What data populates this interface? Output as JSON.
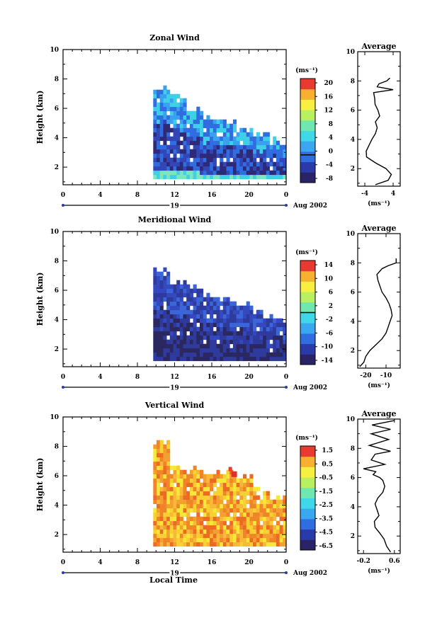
{
  "figure": {
    "date_label": "Aug 2002",
    "day_label": "19",
    "xlabel_bottom": "Local Time",
    "units_label": "(ms⁻¹)"
  },
  "chart_data": [
    {
      "type": "heatmap",
      "title": "Zonal Wind",
      "ylabel": "Height (km)",
      "xlabel": "Local Time",
      "x_ticks": [
        "0",
        "4",
        "8",
        "12",
        "16",
        "20",
        "0"
      ],
      "y_ticks": [
        "2",
        "4",
        "6",
        "8",
        "10"
      ],
      "xlim": [
        0,
        24
      ],
      "ylim": [
        0.8,
        10
      ],
      "data_extent": {
        "x_start": 9.7,
        "x_end": 24,
        "top_heights": [
          7.8,
          7.2,
          6.4,
          5.8,
          5.4,
          5.0,
          4.6,
          4.2
        ]
      },
      "colorbar": {
        "unit": "(ms⁻¹)",
        "range": [
          -8,
          22
        ],
        "tick_labels": [
          "-8",
          "-4",
          "0",
          "4",
          "8",
          "12",
          "16",
          "20"
        ],
        "contour_level": 0
      },
      "shading": "mostly negative (dark to mid blue), cyan/green band near 1 km and above 5 km",
      "average_profile": {
        "title": "Average",
        "xlabel": "(ms⁻¹)",
        "x_ticks": [
          "-4",
          "4"
        ],
        "xlim": [
          -6,
          6
        ],
        "y_ticks": [
          "2",
          "4",
          "6",
          "8",
          "10"
        ],
        "ylim": [
          0.8,
          10
        ],
        "points": [
          [
            -1,
            0.9
          ],
          [
            2.6,
            1.2
          ],
          [
            3.5,
            1.6
          ],
          [
            2,
            2
          ],
          [
            -1,
            2.4
          ],
          [
            -3.5,
            2.8
          ],
          [
            -3.6,
            3.2
          ],
          [
            -2.8,
            3.6
          ],
          [
            -2,
            4
          ],
          [
            -1,
            4.4
          ],
          [
            -0.5,
            4.8
          ],
          [
            -1,
            5.2
          ],
          [
            0.2,
            5.6
          ],
          [
            -0.3,
            6
          ],
          [
            -1.1,
            6.4
          ],
          [
            -1.2,
            6.8
          ],
          [
            -1.5,
            7.2
          ],
          [
            4,
            7.4
          ],
          [
            -0.5,
            7.6
          ],
          [
            0,
            7.8
          ],
          [
            2.2,
            8.0
          ],
          [
            3.1,
            8.2
          ]
        ]
      }
    },
    {
      "type": "heatmap",
      "title": "Meridional Wind",
      "ylabel": "Height (km)",
      "xlabel": "Local Time",
      "x_ticks": [
        "0",
        "4",
        "8",
        "12",
        "16",
        "20",
        "0"
      ],
      "y_ticks": [
        "2",
        "4",
        "6",
        "8",
        "10"
      ],
      "xlim": [
        0,
        24
      ],
      "ylim": [
        0.8,
        10
      ],
      "data_extent": {
        "x_start": 9.7,
        "x_end": 24,
        "top_heights": [
          7.8,
          6.9,
          6.6,
          6.2,
          5.8,
          5.4,
          4.8,
          4.4
        ]
      },
      "colorbar": {
        "unit": "(ms⁻¹)",
        "range": [
          -16,
          16
        ],
        "tick_labels": [
          "-14",
          "-10",
          "-6",
          "-2",
          "2",
          "6",
          "10",
          "14"
        ],
        "contour_level": 0
      },
      "shading": "strongly negative (dark blue) throughout",
      "average_profile": {
        "title": "Average",
        "xlabel": "(ms⁻¹)",
        "x_ticks": [
          "-20",
          "-10"
        ],
        "xlim": [
          -24,
          -3
        ],
        "y_ticks": [
          "2",
          "4",
          "6",
          "8",
          "10"
        ],
        "ylim": [
          0.8,
          10
        ],
        "points": [
          [
            -23,
            0.9
          ],
          [
            -21,
            1.2
          ],
          [
            -20,
            1.6
          ],
          [
            -18,
            2
          ],
          [
            -15,
            2.4
          ],
          [
            -12,
            2.8
          ],
          [
            -10,
            3.2
          ],
          [
            -9,
            3.6
          ],
          [
            -8,
            4
          ],
          [
            -7,
            4.4
          ],
          [
            -7.5,
            4.8
          ],
          [
            -8.5,
            5.2
          ],
          [
            -10,
            5.6
          ],
          [
            -12,
            6
          ],
          [
            -13,
            6.4
          ],
          [
            -14,
            6.8
          ],
          [
            -14.5,
            7.2
          ],
          [
            -12,
            7.6
          ],
          [
            -9,
            7.8
          ],
          [
            -5,
            8.0
          ],
          [
            -5,
            8.3
          ]
        ]
      }
    },
    {
      "type": "heatmap",
      "title": "Vertical Wind",
      "ylabel": "Height (km)",
      "xlabel": "Local Time",
      "x_ticks": [
        "0",
        "4",
        "8",
        "12",
        "16",
        "20",
        "0"
      ],
      "y_ticks": [
        "2",
        "4",
        "6",
        "8",
        "10"
      ],
      "xlim": [
        0,
        24
      ],
      "ylim": [
        0.8,
        10
      ],
      "data_extent": {
        "x_start": 9.7,
        "x_end": 24,
        "top_heights": [
          8.6,
          7.0,
          6.8,
          6.6,
          6.5,
          6.3,
          5.4,
          5.0
        ]
      },
      "colorbar": {
        "unit": "(ms⁻¹)",
        "range": [
          -7,
          2.5
        ],
        "tick_labels": [
          "-6.5",
          "-4.5",
          "-3.5",
          "-2.5",
          "-1.5",
          "-0.5",
          "0.5",
          "1.5"
        ]
      },
      "shading": "yellow to orange (near zero to slightly positive), red patch near 18-19 h at 6 km",
      "average_profile": {
        "title": "Average",
        "xlabel": "(ms⁻¹)",
        "x_ticks": [
          "-0.2",
          "0.6"
        ],
        "xlim": [
          -0.35,
          0.75
        ],
        "y_ticks": [
          "2",
          "4",
          "6",
          "8",
          "10"
        ],
        "ylim": [
          0.8,
          10
        ],
        "points": [
          [
            0.5,
            0.9
          ],
          [
            0.4,
            1.3
          ],
          [
            0.33,
            1.8
          ],
          [
            0.22,
            2.2
          ],
          [
            0.1,
            2.6
          ],
          [
            0.08,
            3
          ],
          [
            0.2,
            3.4
          ],
          [
            0.15,
            3.8
          ],
          [
            0.1,
            4.2
          ],
          [
            0.17,
            4.6
          ],
          [
            0.3,
            5
          ],
          [
            0.35,
            5.4
          ],
          [
            0.3,
            5.8
          ],
          [
            0.22,
            6
          ],
          [
            0.05,
            6.2
          ],
          [
            0.12,
            6.4
          ],
          [
            -0.2,
            6.6
          ],
          [
            0.35,
            6.9
          ],
          [
            0,
            7.2
          ],
          [
            0.1,
            7.6
          ],
          [
            0.5,
            7.8
          ],
          [
            -0.05,
            8.2
          ],
          [
            0.45,
            8.6
          ],
          [
            0,
            9
          ],
          [
            0.5,
            9.3
          ],
          [
            0.02,
            9.6
          ],
          [
            0.6,
            9.9
          ]
        ]
      }
    }
  ]
}
